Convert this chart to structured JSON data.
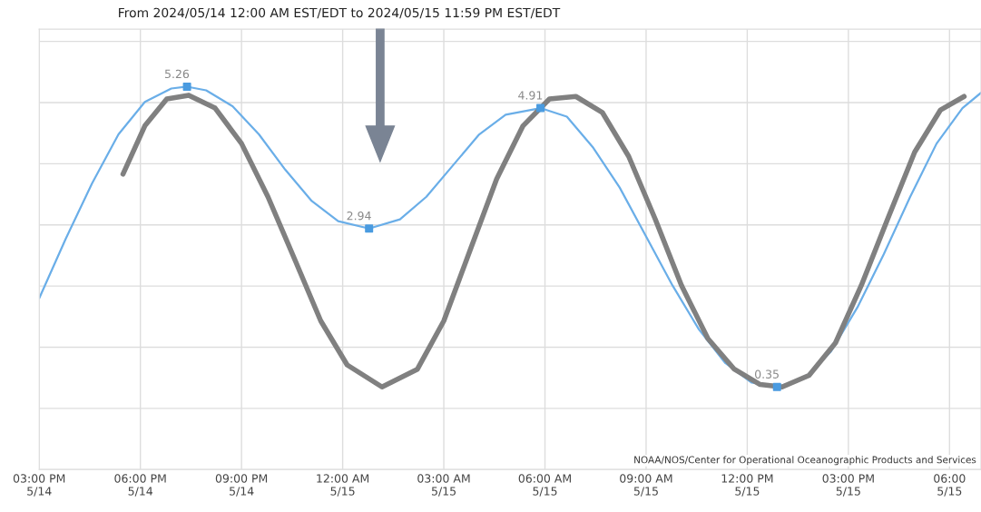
{
  "chart_data": {
    "type": "line",
    "title": "From 2024/05/14 12:00 AM EST/EDT to 2024/05/15 11:59 PM EST/EDT",
    "annotations": [
      "NOAA/NOS/Center for Operational Oceanographic Products and Services"
    ],
    "series": [
      {
        "color": "#6aaee8",
        "x": [
          "2024-05-14T15:00",
          "2024-05-14T15:47",
          "2024-05-14T16:34",
          "2024-05-14T17:21",
          "2024-05-14T18:08",
          "2024-05-14T18:55",
          "2024-05-14T19:23",
          "2024-05-14T19:57",
          "2024-05-14T20:44",
          "2024-05-14T21:31",
          "2024-05-14T22:18",
          "2024-05-14T23:05",
          "2024-05-14T23:52",
          "2024-05-15T00:47",
          "2024-05-15T01:42",
          "2024-05-15T02:29",
          "2024-05-15T03:16",
          "2024-05-15T04:03",
          "2024-05-15T04:50",
          "2024-05-15T05:52",
          "2024-05-15T06:39",
          "2024-05-15T07:26",
          "2024-05-15T08:13",
          "2024-05-15T09:00",
          "2024-05-15T09:47",
          "2024-05-15T10:34",
          "2024-05-15T11:21",
          "2024-05-15T12:08",
          "2024-05-15T12:53",
          "2024-05-15T13:42",
          "2024-05-15T14:29",
          "2024-05-15T15:16",
          "2024-05-15T16:03",
          "2024-05-15T16:50",
          "2024-05-15T17:37",
          "2024-05-15T18:23",
          "2024-05-15T18:56"
        ],
        "values": [
          1.8,
          2.77,
          3.68,
          4.48,
          5.01,
          5.23,
          5.26,
          5.2,
          4.94,
          4.48,
          3.9,
          3.39,
          3.06,
          2.94,
          3.09,
          3.46,
          3.97,
          4.48,
          4.8,
          4.91,
          4.77,
          4.26,
          3.61,
          2.81,
          2.01,
          1.29,
          0.74,
          0.42,
          0.35,
          0.49,
          0.93,
          1.65,
          2.52,
          3.46,
          4.33,
          4.91,
          5.16
        ]
      },
      {
        "color": "#808080",
        "x": [
          "2024-05-14T17:29",
          "2024-05-14T18:08",
          "2024-05-14T18:47",
          "2024-05-14T19:26",
          "2024-05-14T20:13",
          "2024-05-14T21:00",
          "2024-05-14T21:47",
          "2024-05-14T22:34",
          "2024-05-14T23:21",
          "2024-05-15T00:08",
          "2024-05-15T01:10",
          "2024-05-15T02:13",
          "2024-05-15T03:00",
          "2024-05-15T03:47",
          "2024-05-15T04:34",
          "2024-05-15T05:21",
          "2024-05-15T06:08",
          "2024-05-15T06:55",
          "2024-05-15T07:42",
          "2024-05-15T08:29",
          "2024-05-15T09:16",
          "2024-05-15T10:03",
          "2024-05-15T10:50",
          "2024-05-15T11:37",
          "2024-05-15T12:23",
          "2024-05-15T13:02",
          "2024-05-15T13:50",
          "2024-05-15T14:37",
          "2024-05-15T15:23",
          "2024-05-15T16:10",
          "2024-05-15T16:58",
          "2024-05-15T17:44",
          "2024-05-15T18:26"
        ],
        "values": [
          3.83,
          4.62,
          5.06,
          5.12,
          4.91,
          4.33,
          3.46,
          2.45,
          1.43,
          0.71,
          0.35,
          0.64,
          1.43,
          2.59,
          3.75,
          4.62,
          5.06,
          5.1,
          4.84,
          4.12,
          3.1,
          2.01,
          1.14,
          0.64,
          0.39,
          0.35,
          0.54,
          1.07,
          2.01,
          3.1,
          4.19,
          4.88,
          5.1
        ]
      },
      {
        "type": "scatter",
        "color": "#4a9be0",
        "marker": "square",
        "x": [
          "2024-05-14T19:23",
          "2024-05-15T00:47",
          "2024-05-15T05:52",
          "2024-05-15T12:53"
        ],
        "values": [
          5.26,
          2.94,
          4.91,
          0.35
        ],
        "value_labels": [
          "5.26",
          "2.94",
          "4.91",
          "0.35"
        ]
      }
    ],
    "xlim": [
      "2024-05-14T15:00",
      "2024-05-15T18:56"
    ],
    "xticks": [
      {
        "value": "2024-05-14T15:00",
        "label": "03:00 PM\n5/14"
      },
      {
        "value": "2024-05-14T18:00",
        "label": "06:00 PM\n5/14"
      },
      {
        "value": "2024-05-14T21:00",
        "label": "09:00 PM\n5/14"
      },
      {
        "value": "2024-05-15T00:00",
        "label": "12:00 AM\n5/15"
      },
      {
        "value": "2024-05-15T03:00",
        "label": "03:00 AM\n5/15"
      },
      {
        "value": "2024-05-15T06:00",
        "label": "06:00 AM\n5/15"
      },
      {
        "value": "2024-05-15T09:00",
        "label": "09:00 AM\n5/15"
      },
      {
        "value": "2024-05-15T12:00",
        "label": "12:00 PM\n5/15"
      },
      {
        "value": "2024-05-15T15:00",
        "label": "03:00 PM\n5/15"
      },
      {
        "value": "2024-05-15T18:00",
        "label": "06:00\n5/15"
      }
    ],
    "ylim": [
      -1,
      6.2
    ],
    "yticks": [
      {
        "value": -1,
        "label": null
      },
      {
        "value": 0,
        "label": null
      },
      {
        "value": 1,
        "label": null
      },
      {
        "value": 2,
        "label": null
      },
      {
        "value": 3,
        "label": null
      },
      {
        "value": 4,
        "label": null
      },
      {
        "value": 5,
        "label": null
      },
      {
        "value": 6,
        "label": null
      }
    ],
    "tick_labels": "x",
    "grid": true,
    "legend": false
  }
}
